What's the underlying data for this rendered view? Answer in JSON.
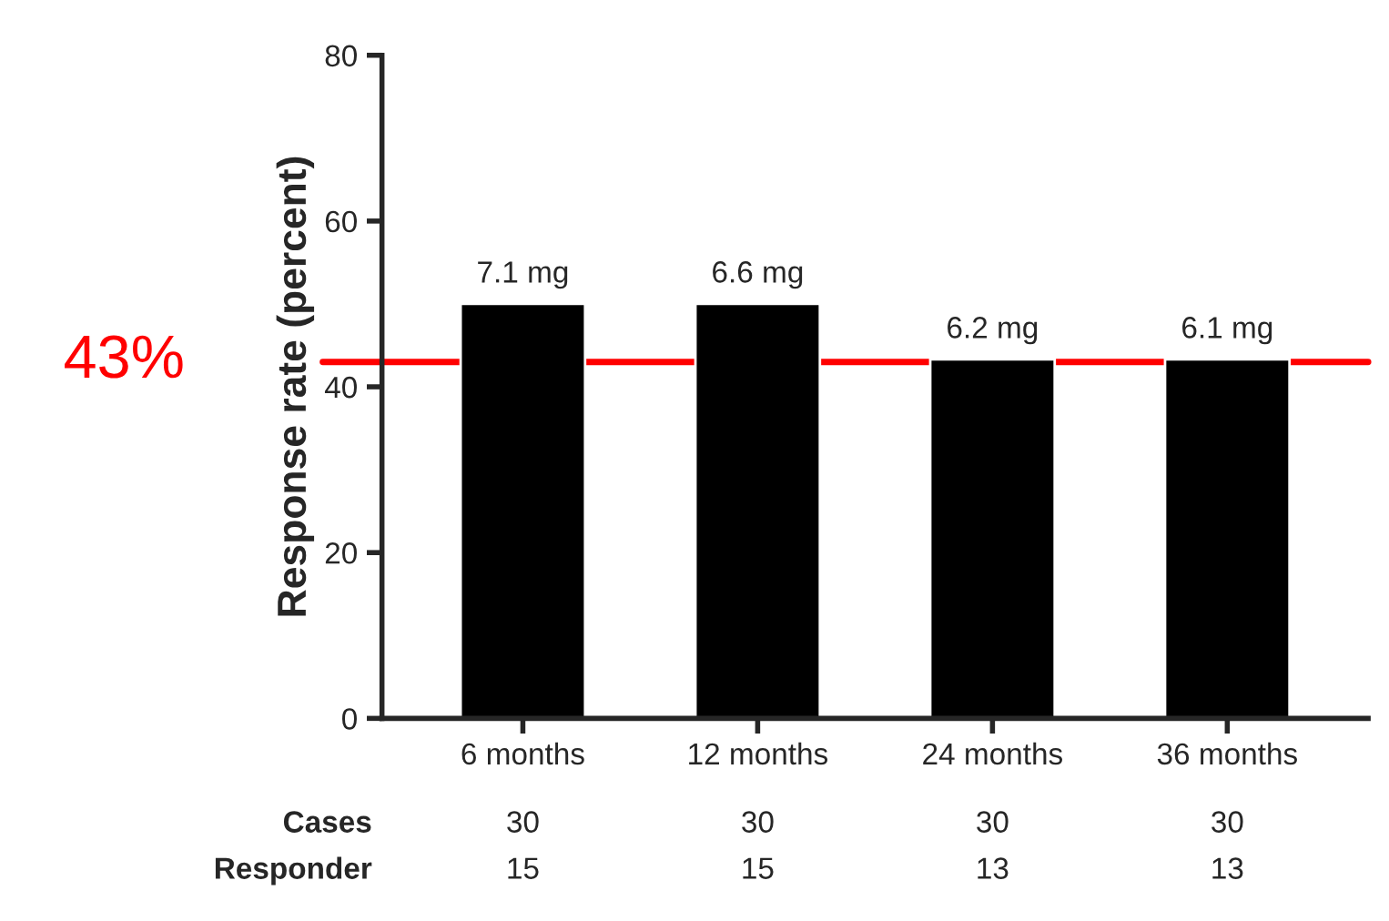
{
  "chart_data": {
    "type": "bar",
    "ylabel": "Response rate (percent)",
    "categories": [
      "6 months",
      "12 months",
      "24 months",
      "36 months"
    ],
    "values": [
      50,
      50,
      43.3,
      43.3
    ],
    "color": "#000000",
    "ylim": [
      0,
      80
    ],
    "yticks": [
      0,
      20,
      40,
      60,
      80
    ],
    "grid": false,
    "ref_lines": [
      {
        "axis": "y",
        "value": 43,
        "label": "43%",
        "color": "#ff0000",
        "line_style": "solid"
      }
    ],
    "annotations": [
      {
        "text": "7.1 mg",
        "x": "6 months",
        "y": 50
      },
      {
        "text": "6.6 mg",
        "x": "12 months",
        "y": 50
      },
      {
        "text": "6.2 mg",
        "x": "24 months",
        "y": 43.3
      },
      {
        "text": "6.1 mg",
        "x": "36 months",
        "y": 43.3
      },
      "Cases",
      "30",
      "30",
      "30",
      "30",
      "Responder",
      "15",
      "15",
      "13",
      "13"
    ]
  }
}
